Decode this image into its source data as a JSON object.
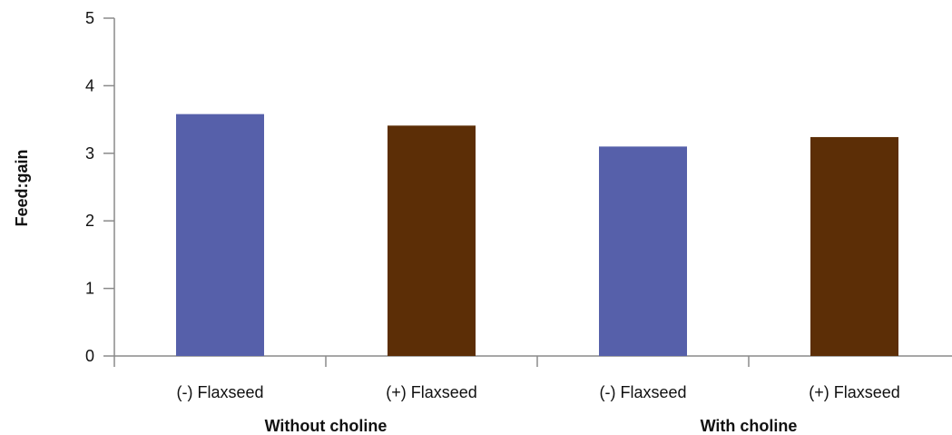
{
  "chart_data": {
    "type": "bar",
    "title": "",
    "xlabel": "",
    "ylabel": "Feed:gain",
    "ylim": [
      0,
      5
    ],
    "yticks": [
      "0",
      "1",
      "2",
      "3",
      "4",
      "5"
    ],
    "groups": [
      "Without choline",
      "With choline"
    ],
    "categories": [
      "(-) Flaxseed",
      "(+) Flaxseed",
      "(-) Flaxseed",
      "(+) Flaxseed"
    ],
    "values": [
      3.58,
      3.41,
      3.1,
      3.24
    ],
    "bar_colors": [
      "#5660aa",
      "#5c2e06",
      "#5660aa",
      "#5c2e06"
    ],
    "grid": false,
    "legend": "none"
  },
  "colors": {
    "axis": "#8a8a8a",
    "text": "#111111"
  }
}
